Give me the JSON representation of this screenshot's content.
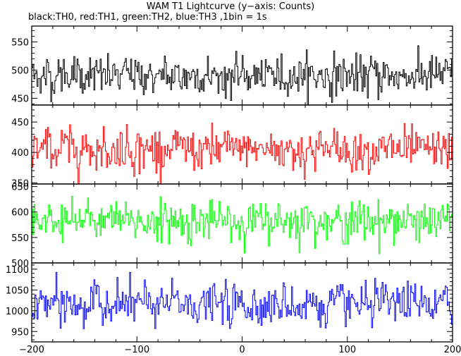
{
  "title": "WAM T1 Lightcurve (y−axis: Counts)",
  "subtitle": "black:TH0, red:TH1, green:TH2, blue:TH3 ,1bin = 1s",
  "chart_data": {
    "type": "line",
    "xlim": [
      -200,
      200
    ],
    "xticks": [
      -200,
      -100,
      0,
      100,
      200
    ],
    "n_bins": 400,
    "grid": false,
    "panels": [
      {
        "name": "TH0",
        "color": "#000000",
        "ylim": [
          438,
          578
        ],
        "yticks": [
          450,
          500,
          550
        ],
        "mean": 490,
        "std": 22
      },
      {
        "name": "TH1",
        "color": "#ff0000",
        "ylim": [
          348,
          478
        ],
        "yticks": [
          350,
          400,
          450
        ],
        "mean": 405,
        "std": 22
      },
      {
        "name": "TH2",
        "color": "#00ff00",
        "ylim": [
          500,
          655
        ],
        "yticks": [
          500,
          550,
          600,
          650
        ],
        "mean": 582,
        "std": 25
      },
      {
        "name": "TH3",
        "color": "#0000ff",
        "ylim": [
          925,
          1115
        ],
        "yticks": [
          950,
          1000,
          1050,
          1100
        ],
        "mean": 1015,
        "std": 32
      }
    ]
  }
}
